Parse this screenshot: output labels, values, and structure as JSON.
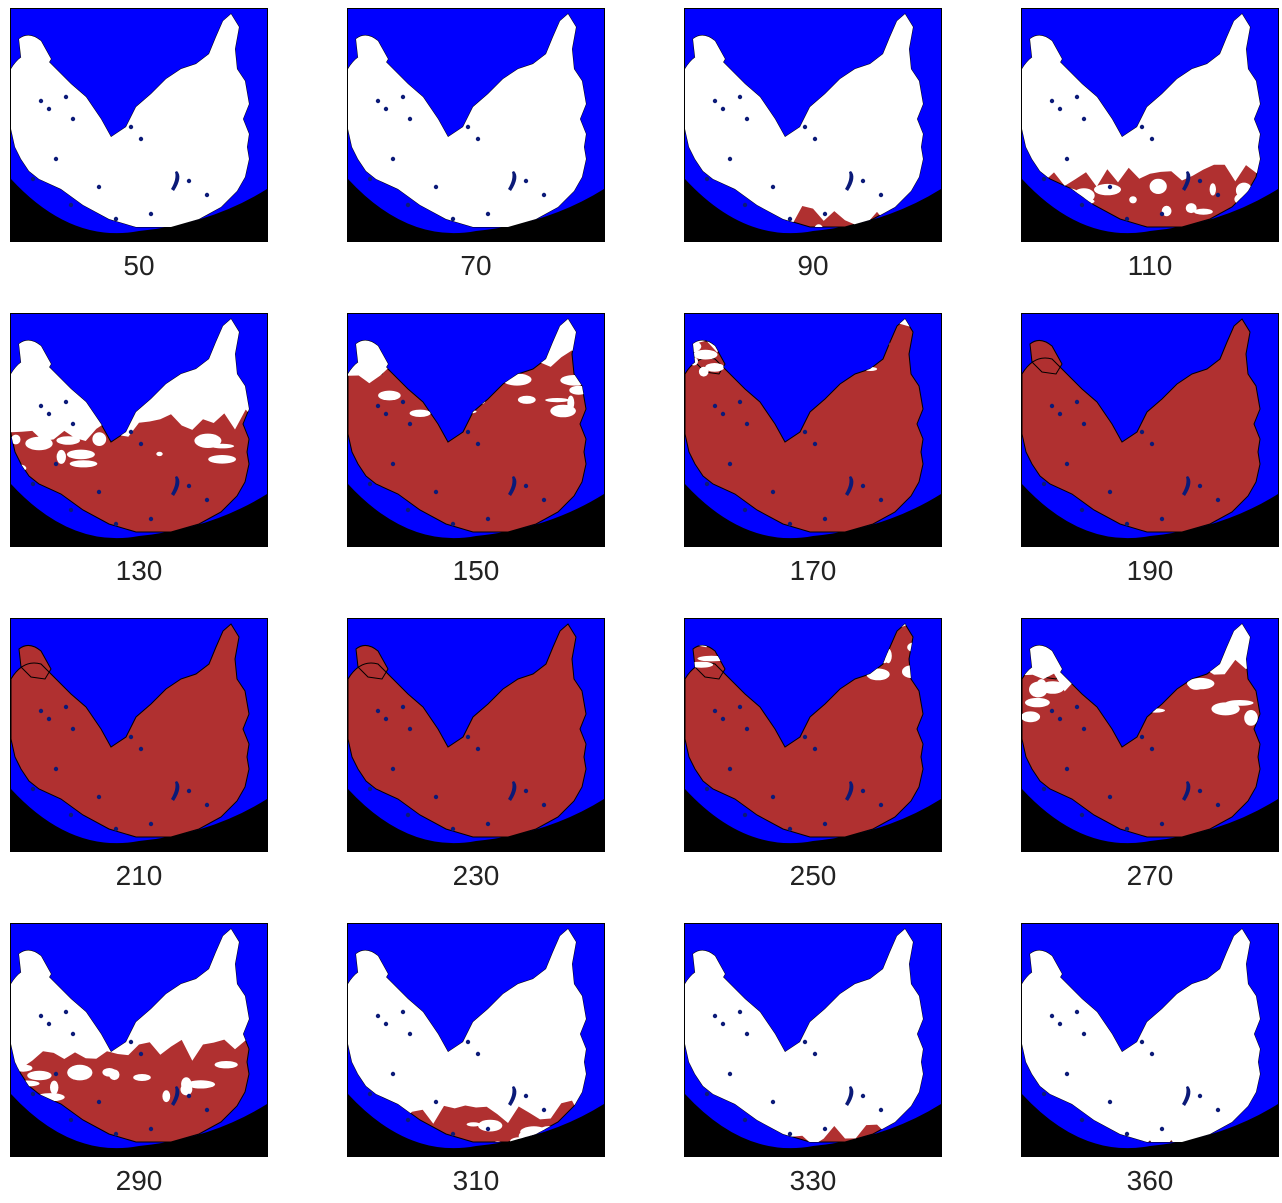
{
  "colors": {
    "ocean": "#0000ff",
    "snow": "#ffffff",
    "no_snow": "#b03030",
    "no_data": "#000000",
    "lakes": "#0b1a78"
  },
  "panels": [
    {
      "label": "50",
      "snow_fraction": 0.99
    },
    {
      "label": "70",
      "snow_fraction": 0.97
    },
    {
      "label": "90",
      "snow_fraction": 0.9
    },
    {
      "label": "110",
      "snow_fraction": 0.72
    },
    {
      "label": "130",
      "snow_fraction": 0.48
    },
    {
      "label": "150",
      "snow_fraction": 0.22
    },
    {
      "label": "170",
      "snow_fraction": 0.06
    },
    {
      "label": "190",
      "snow_fraction": 0.0
    },
    {
      "label": "210",
      "snow_fraction": 0.0
    },
    {
      "label": "230",
      "snow_fraction": 0.0
    },
    {
      "label": "250",
      "snow_fraction": 0.03
    },
    {
      "label": "270",
      "snow_fraction": 0.22
    },
    {
      "label": "290",
      "snow_fraction": 0.55
    },
    {
      "label": "310",
      "snow_fraction": 0.82
    },
    {
      "label": "330",
      "snow_fraction": 0.92
    },
    {
      "label": "360",
      "snow_fraction": 0.98
    }
  ]
}
